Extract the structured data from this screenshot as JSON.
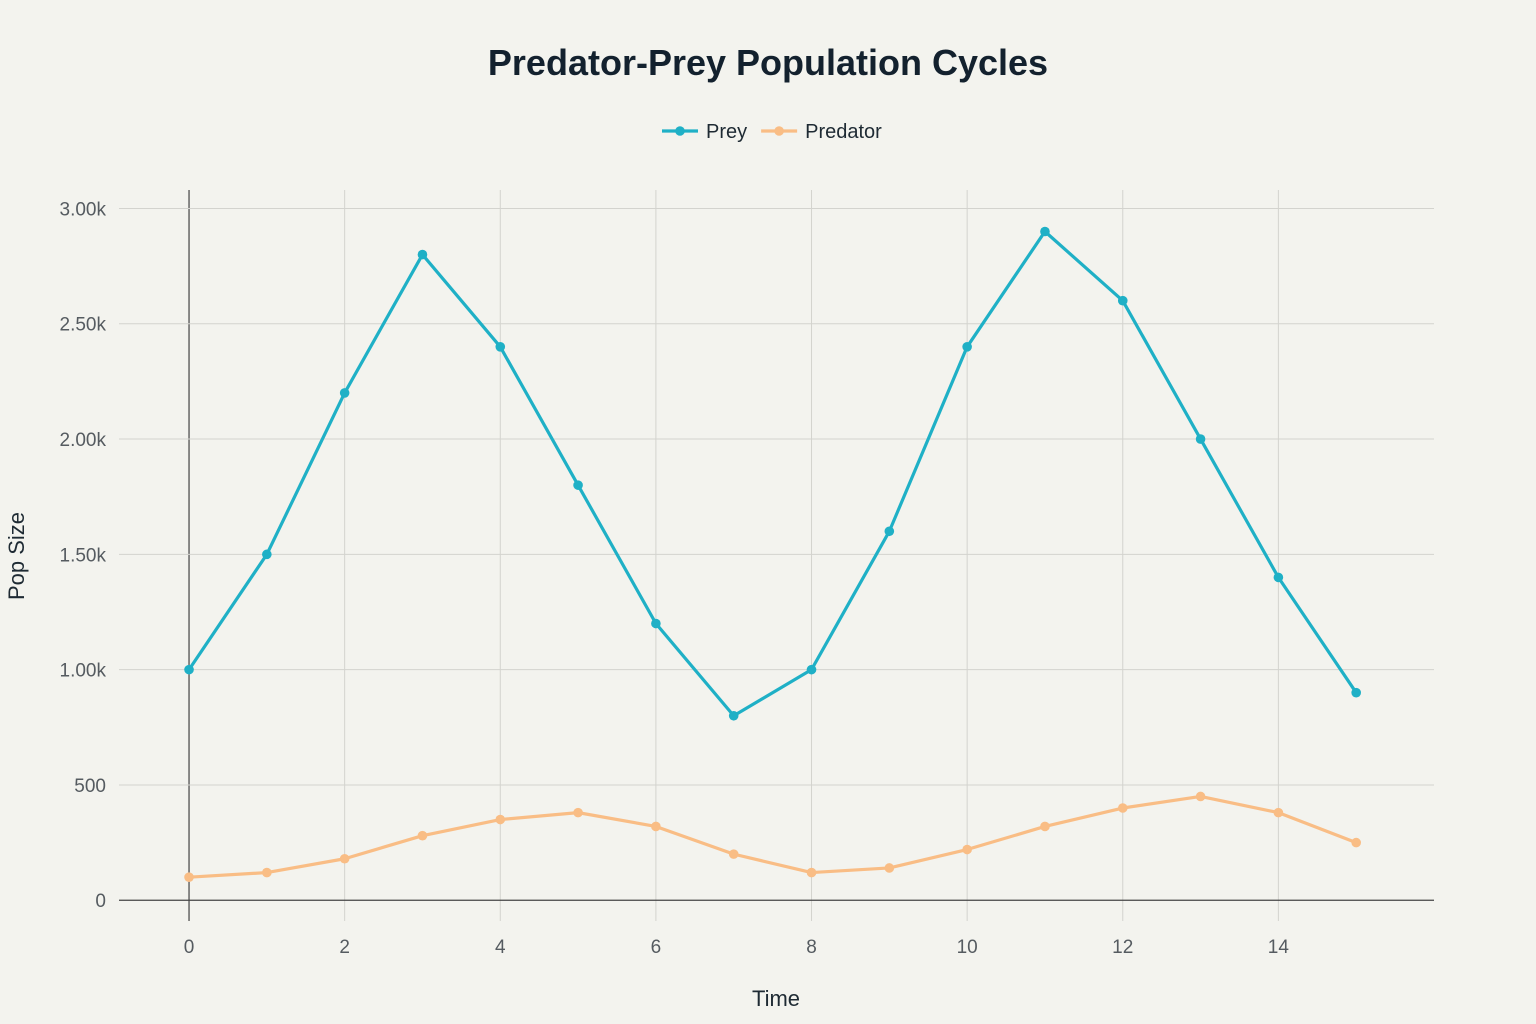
{
  "chart_data": {
    "type": "line",
    "title": "Predator-Prey Population Cycles",
    "xlabel": "Time",
    "ylabel": "Pop Size",
    "x": [
      0,
      1,
      2,
      3,
      4,
      5,
      6,
      7,
      8,
      9,
      10,
      11,
      12,
      13,
      14,
      15
    ],
    "xlim": [
      -0.9,
      16
    ],
    "ylim": [
      -90,
      3080
    ],
    "x_ticks": [
      0,
      2,
      4,
      6,
      8,
      10,
      12,
      14
    ],
    "x_tick_labels": [
      "0",
      "2",
      "4",
      "6",
      "8",
      "10",
      "12",
      "14"
    ],
    "y_ticks": [
      0,
      500,
      1000,
      1500,
      2000,
      2500,
      3000
    ],
    "y_tick_labels": [
      "0",
      "500",
      "1.00k",
      "1.50k",
      "2.00k",
      "2.50k",
      "3.00k"
    ],
    "grid": true,
    "legend_position": "top-center",
    "series": [
      {
        "name": "Prey",
        "color": "#1fb0c6",
        "values": [
          1000,
          1500,
          2200,
          2800,
          2400,
          1800,
          1200,
          800,
          1000,
          1600,
          2400,
          2900,
          2600,
          2000,
          1400,
          900
        ]
      },
      {
        "name": "Predator",
        "color": "#f9bd85",
        "values": [
          100,
          120,
          180,
          280,
          350,
          380,
          320,
          200,
          120,
          140,
          220,
          320,
          400,
          450,
          380,
          250
        ]
      }
    ]
  }
}
